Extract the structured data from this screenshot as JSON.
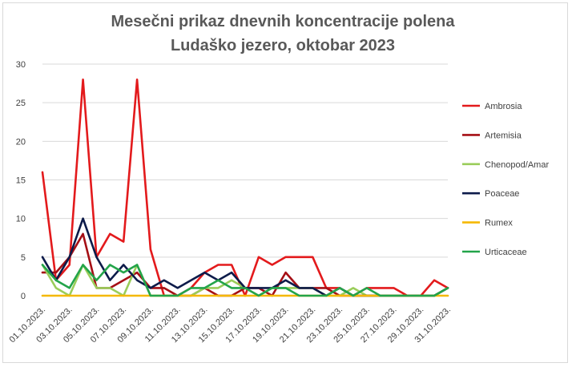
{
  "chart_data": {
    "type": "line",
    "title": [
      "Mesečni prikaz dnevnih koncentracije polena",
      "Ludaško jezero, oktobar 2023"
    ],
    "xlabel": "",
    "ylabel": "",
    "ylim": [
      0,
      30
    ],
    "yticks": [
      0,
      5,
      10,
      15,
      20,
      25,
      30
    ],
    "grid": true,
    "legend_position": "right",
    "categories": [
      "01.10.2023.",
      "02.10.2023.",
      "03.10.2023.",
      "04.10.2023.",
      "05.10.2023.",
      "06.10.2023.",
      "07.10.2023.",
      "08.10.2023.",
      "09.10.2023.",
      "10.10.2023.",
      "11.10.2023.",
      "12.10.2023.",
      "13.10.2023.",
      "14.10.2023.",
      "15.10.2023.",
      "16.10.2023.",
      "17.10.2023.",
      "18.10.2023.",
      "19.10.2023.",
      "20.10.2023.",
      "21.10.2023.",
      "22.10.2023.",
      "23.10.2023.",
      "24.10.2023.",
      "25.10.2023.",
      "26.10.2023.",
      "27.10.2023.",
      "28.10.2023.",
      "29.10.2023.",
      "30.10.2023.",
      "31.10.2023."
    ],
    "xtick_labels": [
      "01.10.2023.",
      "03.10.2023.",
      "05.10.2023.",
      "07.10.2023.",
      "09.10.2023.",
      "11.10.2023.",
      "13.10.2023.",
      "15.10.2023.",
      "17.10.2023.",
      "19.10.2023.",
      "21.10.2023.",
      "23.10.2023.",
      "25.10.2023.",
      "27.10.2023.",
      "29.10.2023.",
      "31.10.2023."
    ],
    "series": [
      {
        "name": "Ambrosia",
        "color": "#e31a1c",
        "values": [
          16,
          2,
          4,
          28,
          5,
          8,
          7,
          28,
          6,
          0,
          0,
          1,
          3,
          4,
          4,
          0,
          5,
          4,
          5,
          5,
          5,
          1,
          1,
          0,
          1,
          1,
          1,
          0,
          0,
          2,
          1
        ]
      },
      {
        "name": "Artemisia",
        "color": "#a50f15",
        "values": [
          3,
          3,
          5,
          8,
          1,
          1,
          2,
          3,
          1,
          1,
          0,
          0,
          1,
          0,
          0,
          1,
          1,
          0,
          3,
          1,
          1,
          1,
          0,
          0,
          0,
          0,
          0,
          0,
          0,
          0,
          1
        ]
      },
      {
        "name": "Chenopod/Amar",
        "color": "#9acd5a",
        "values": [
          4,
          1,
          0,
          4,
          1,
          1,
          0,
          4,
          0,
          0,
          0,
          0,
          1,
          1,
          2,
          1,
          0,
          1,
          1,
          1,
          1,
          0,
          0,
          1,
          0,
          0,
          0,
          0,
          0,
          0,
          1
        ]
      },
      {
        "name": "Poaceae",
        "color": "#0d1b4a",
        "values": [
          5,
          2,
          5,
          10,
          5,
          2,
          4,
          2,
          1,
          2,
          1,
          2,
          3,
          2,
          3,
          1,
          1,
          1,
          2,
          1,
          1,
          0,
          1,
          0,
          0,
          0,
          0,
          0,
          0,
          0,
          1
        ]
      },
      {
        "name": "Rumex",
        "color": "#f5b800",
        "values": [
          0,
          0,
          0,
          0,
          0,
          0,
          0,
          0,
          0,
          0,
          0,
          0,
          0,
          0,
          0,
          0,
          0,
          0,
          0,
          0,
          0,
          0,
          0,
          0,
          0,
          0,
          0,
          0,
          0,
          0,
          0
        ]
      },
      {
        "name": "Urticaceae",
        "color": "#23a44a",
        "values": [
          4,
          2,
          1,
          4,
          2,
          4,
          3,
          4,
          0,
          0,
          0,
          1,
          1,
          2,
          1,
          1,
          0,
          1,
          1,
          0,
          0,
          0,
          1,
          0,
          1,
          0,
          0,
          0,
          0,
          0,
          1
        ]
      }
    ]
  }
}
